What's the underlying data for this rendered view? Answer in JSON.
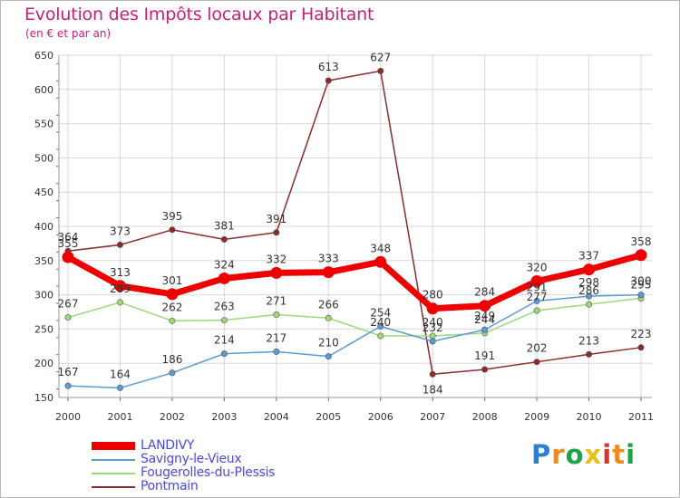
{
  "chart_data": {
    "type": "line",
    "title": "Evolution des Impôts locaux par Habitant",
    "subtitle": "(en € et par an)",
    "xlabel": "",
    "ylabel": "",
    "categories": [
      "2000",
      "2001",
      "2002",
      "2003",
      "2004",
      "2005",
      "2006",
      "2007",
      "2008",
      "2009",
      "2010",
      "2011"
    ],
    "ylim": [
      150,
      650
    ],
    "yticks": [
      150,
      200,
      250,
      300,
      350,
      400,
      450,
      500,
      550,
      600,
      650
    ],
    "grid": true,
    "legend_position": "bottom-left",
    "series": [
      {
        "name": "LANDIVY",
        "color": "#ee0000",
        "values": [
          355,
          313,
          301,
          324,
          332,
          333,
          348,
          280,
          284,
          320,
          337,
          358
        ]
      },
      {
        "name": "Savigny-le-Vieux",
        "color": "#5b9bd5",
        "values": [
          167,
          164,
          186,
          214,
          217,
          210,
          254,
          232,
          249,
          291,
          298,
          300
        ]
      },
      {
        "name": "Fougerolles-du-Plessis",
        "color": "#9bd97a",
        "values": [
          267,
          289,
          262,
          263,
          271,
          266,
          240,
          240,
          244,
          277,
          286,
          295
        ]
      },
      {
        "name": "Pontmain",
        "color": "#8b2b2b",
        "values": [
          364,
          373,
          395,
          381,
          391,
          613,
          627,
          184,
          191,
          202,
          213,
          223
        ]
      }
    ]
  },
  "logo": {
    "text": "Proxiti",
    "letters": [
      "P",
      "r",
      "o",
      "x",
      "i",
      "t",
      "i"
    ]
  }
}
